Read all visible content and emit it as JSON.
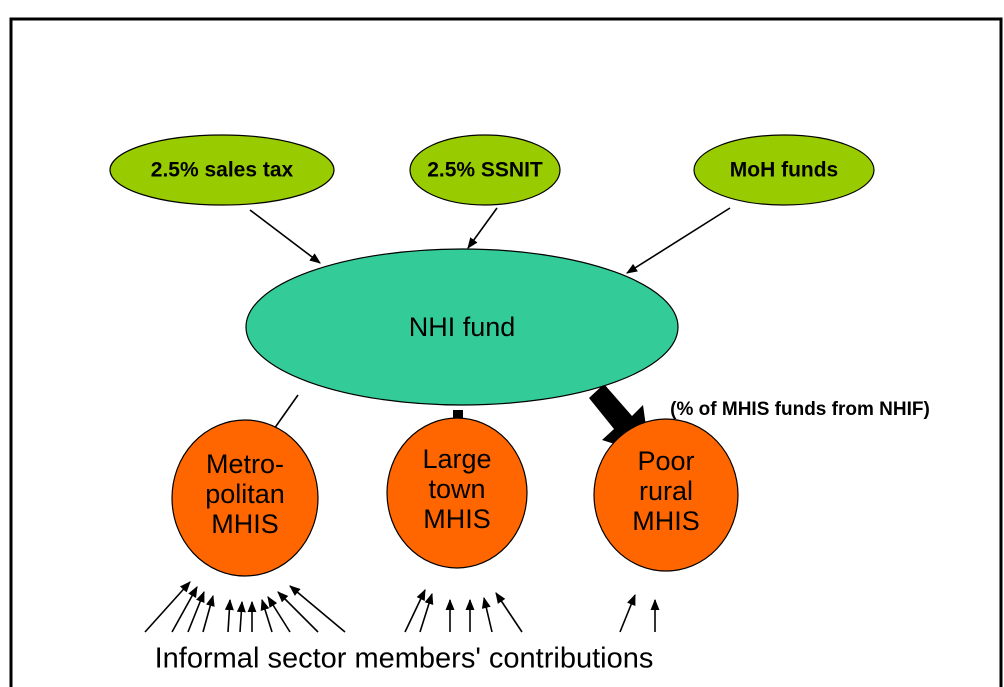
{
  "sources": [
    {
      "label": "2.5% sales tax"
    },
    {
      "label": "2.5% SSNIT"
    },
    {
      "label": "MoH funds"
    }
  ],
  "hub": {
    "label": "NHI fund"
  },
  "schemes": [
    {
      "lines": [
        "Metro-",
        "politan",
        "MHIS"
      ]
    },
    {
      "lines": [
        "Large",
        "town",
        "MHIS"
      ]
    },
    {
      "lines": [
        "Poor",
        "rural",
        "MHIS"
      ]
    }
  ],
  "edge_label": "(% of MHIS funds from NHIF)",
  "footer": "Informal sector members' contributions"
}
